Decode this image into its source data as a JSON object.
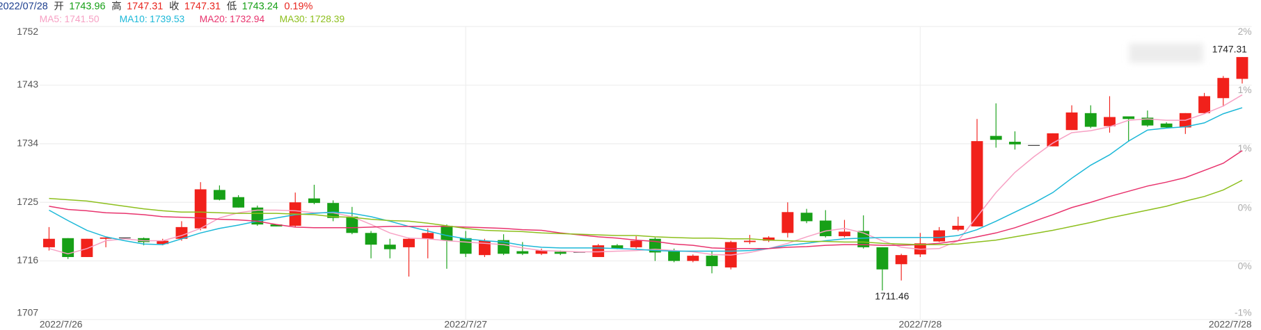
{
  "header": {
    "date": "2022/07/28",
    "open_label": "开",
    "open": 1743.96,
    "high_label": "高",
    "high": 1747.31,
    "close_label": "收",
    "close": 1747.31,
    "low_label": "低",
    "low": 1743.24,
    "change": {
      "value": 0.19,
      "label": "0.19%"
    }
  },
  "chart_data": {
    "type": "candlestick",
    "categories": [
      "2022/7/26",
      null,
      null,
      null,
      null,
      null,
      null,
      null,
      null,
      null,
      null,
      null,
      null,
      null,
      null,
      null,
      null,
      null,
      null,
      null,
      null,
      null,
      "2022/7/27",
      null,
      null,
      null,
      null,
      null,
      null,
      null,
      null,
      null,
      null,
      null,
      null,
      null,
      null,
      null,
      null,
      null,
      null,
      null,
      null,
      null,
      null,
      null,
      "2022/7/28",
      null,
      null,
      null,
      null,
      null,
      null,
      null,
      null,
      null,
      null,
      null,
      null,
      null,
      null,
      null,
      null,
      "2022/7/28"
    ],
    "open": [
      1718.1,
      1719.5,
      1716.6,
      1719.4,
      1719.6,
      1719.5,
      1718.6,
      1719.4,
      1721.0,
      1726.9,
      1725.8,
      1724.2,
      1721.6,
      1721.4,
      1725.6,
      1724.9,
      1722.8,
      1720.3,
      1718.5,
      1718.1,
      1719.4,
      1721.4,
      1719.5,
      1716.9,
      1719.2,
      1717.5,
      1717.1,
      1717.4,
      1717.4,
      1716.6,
      1718.4,
      1718.1,
      1719.4,
      1717.5,
      1716.0,
      1716.8,
      1715.0,
      1718.9,
      1719.1,
      1720.3,
      1723.4,
      1722.2,
      1719.8,
      1720.6,
      1718.1,
      1715.5,
      1717.0,
      1719.0,
      1720.8,
      1721.3,
      1735.2,
      1734.3,
      1733.8,
      1733.6,
      1736.1,
      1738.7,
      1736.7,
      1738.2,
      1738.0,
      1737.1,
      1736.5,
      1738.7,
      1741.0,
      1743.96
    ],
    "high": [
      1721.2,
      1719.5,
      1719.4,
      1719.6,
      1719.6,
      1719.6,
      1719.4,
      1722.1,
      1728.1,
      1727.6,
      1726.1,
      1724.5,
      1721.6,
      1726.5,
      1727.7,
      1725.3,
      1724.3,
      1720.6,
      1719.4,
      1719.6,
      1721.0,
      1721.6,
      1720.6,
      1719.4,
      1720.1,
      1718.9,
      1717.9,
      1717.6,
      1717.4,
      1718.6,
      1718.6,
      1719.8,
      1719.6,
      1717.9,
      1717.0,
      1717.5,
      1719.1,
      1720.0,
      1719.8,
      1725.0,
      1724.0,
      1723.8,
      1722.3,
      1723.0,
      1718.1,
      1717.1,
      1720.3,
      1721.2,
      1722.8,
      1737.8,
      1740.2,
      1735.9,
      1733.8,
      1735.6,
      1739.9,
      1739.9,
      1741.3,
      1738.2,
      1739.1,
      1737.3,
      1738.7,
      1741.8,
      1744.4,
      1747.31
    ],
    "low": [
      1717.6,
      1716.3,
      1716.6,
      1718.1,
      1719.6,
      1718.4,
      1718.4,
      1719.1,
      1720.7,
      1725.3,
      1724.2,
      1721.4,
      1721.3,
      1721.2,
      1724.7,
      1722.1,
      1720.1,
      1716.4,
      1716.4,
      1713.6,
      1716.4,
      1714.8,
      1716.6,
      1716.6,
      1716.9,
      1716.9,
      1716.9,
      1716.9,
      1717.4,
      1716.6,
      1717.8,
      1717.9,
      1716.0,
      1715.8,
      1715.8,
      1714.1,
      1714.7,
      1718.6,
      1718.9,
      1719.6,
      1721.8,
      1719.6,
      1719.6,
      1717.9,
      1711.46,
      1713.0,
      1716.6,
      1718.9,
      1720.6,
      1721.3,
      1733.4,
      1733.1,
      1733.8,
      1733.6,
      1736.1,
      1736.4,
      1735.7,
      1734.3,
      1736.6,
      1736.4,
      1735.5,
      1738.7,
      1739.7,
      1743.24
    ],
    "close": [
      1719.4,
      1716.6,
      1719.4,
      1719.6,
      1719.6,
      1718.9,
      1719.1,
      1721.2,
      1727.0,
      1725.4,
      1724.2,
      1721.6,
      1721.3,
      1725.0,
      1724.9,
      1722.6,
      1720.3,
      1718.5,
      1717.8,
      1719.4,
      1720.3,
      1719.1,
      1717.1,
      1719.1,
      1717.1,
      1717.1,
      1717.6,
      1717.1,
      1717.4,
      1718.4,
      1717.9,
      1719.1,
      1717.3,
      1716.0,
      1716.8,
      1715.2,
      1718.9,
      1719.1,
      1719.6,
      1723.5,
      1722.1,
      1719.8,
      1720.5,
      1718.1,
      1714.7,
      1716.9,
      1718.7,
      1720.7,
      1721.4,
      1734.4,
      1734.6,
      1733.9,
      1733.8,
      1735.6,
      1738.8,
      1736.6,
      1738.1,
      1737.8,
      1736.8,
      1736.5,
      1738.7,
      1741.3,
      1744.1,
      1747.31
    ],
    "up_color": "#f1211b",
    "down_color": "#17a017",
    "flat_color": "#333333",
    "moving_averages": [
      {
        "name": "MA5",
        "color": "#f7a1c4",
        "values": [
          1717.9,
          1717.1,
          1717.9,
          1719.1,
          1719.4,
          1719.1,
          1719.1,
          1719.9,
          1721.0,
          1722.6,
          1723.4,
          1723.8,
          1723.8,
          1723.7,
          1723.4,
          1723.4,
          1722.8,
          1721.6,
          1720.3,
          1719.5,
          1719.4,
          1719.1,
          1718.9,
          1718.7,
          1718.5,
          1718.0,
          1717.6,
          1717.5,
          1717.4,
          1717.4,
          1717.5,
          1717.6,
          1717.8,
          1717.6,
          1717.4,
          1717.0,
          1716.9,
          1717.3,
          1717.9,
          1718.7,
          1719.7,
          1720.6,
          1721.0,
          1720.3,
          1719.1,
          1718.1,
          1717.8,
          1717.9,
          1719.1,
          1722.8,
          1726.5,
          1729.6,
          1732.0,
          1734.1,
          1735.7,
          1736.0,
          1736.6,
          1737.6,
          1737.8,
          1737.6,
          1737.6,
          1738.6,
          1739.8,
          1741.5
        ],
        "value_labels": [
          null,
          null,
          null,
          null,
          null,
          null,
          null,
          null,
          null,
          null,
          null,
          null,
          null,
          null,
          null,
          null,
          null,
          null,
          null,
          null,
          null,
          null,
          null,
          null,
          null,
          null,
          null,
          null,
          null,
          null,
          null,
          null,
          null,
          null,
          null,
          null,
          null,
          null,
          null,
          null,
          null,
          null,
          null,
          null,
          null,
          null,
          null,
          null,
          null,
          null,
          null,
          null,
          null,
          null,
          null,
          null,
          null,
          null,
          null,
          null,
          null,
          null,
          null,
          "1741.50"
        ]
      },
      {
        "name": "MA10",
        "color": "#1cb8d8",
        "values": [
          1723.8,
          1722.2,
          1720.7,
          1719.7,
          1719.1,
          1718.6,
          1718.5,
          1719.4,
          1720.3,
          1721.0,
          1721.5,
          1722.1,
          1722.6,
          1723.1,
          1723.3,
          1723.5,
          1723.3,
          1722.8,
          1722.1,
          1721.3,
          1720.6,
          1719.9,
          1719.4,
          1719.1,
          1718.9,
          1718.4,
          1718.1,
          1718.0,
          1718.0,
          1718.0,
          1717.9,
          1717.8,
          1717.6,
          1717.5,
          1717.5,
          1717.5,
          1717.5,
          1717.6,
          1717.9,
          1718.4,
          1718.7,
          1719.1,
          1719.4,
          1719.5,
          1719.6,
          1719.6,
          1719.6,
          1719.6,
          1719.9,
          1720.8,
          1722.1,
          1723.5,
          1724.9,
          1726.5,
          1728.7,
          1730.7,
          1732.3,
          1734.4,
          1736.1,
          1736.4,
          1736.6,
          1737.2,
          1738.6,
          1739.53
        ]
      },
      {
        "name": "MA20",
        "color": "#e8336d",
        "values": [
          1724.4,
          1723.9,
          1723.7,
          1723.4,
          1723.3,
          1723.1,
          1722.8,
          1722.7,
          1722.6,
          1722.4,
          1722.3,
          1722.1,
          1721.6,
          1721.2,
          1721.1,
          1721.1,
          1721.1,
          1721.2,
          1721.3,
          1721.3,
          1721.3,
          1721.3,
          1721.2,
          1721.1,
          1721.0,
          1720.8,
          1720.7,
          1720.3,
          1720.0,
          1719.7,
          1719.5,
          1719.2,
          1719.0,
          1718.6,
          1718.4,
          1718.0,
          1717.9,
          1717.9,
          1717.9,
          1718.1,
          1718.2,
          1718.4,
          1718.5,
          1718.5,
          1718.4,
          1718.4,
          1718.5,
          1718.7,
          1719.1,
          1719.7,
          1720.3,
          1721.1,
          1722.1,
          1723.1,
          1724.2,
          1725.0,
          1725.9,
          1726.7,
          1727.5,
          1728.1,
          1728.8,
          1729.9,
          1731.0,
          1732.94
        ]
      },
      {
        "name": "MA30",
        "color": "#8dbf1d",
        "values": [
          1725.6,
          1725.4,
          1725.2,
          1724.8,
          1724.4,
          1724.0,
          1723.7,
          1723.5,
          1723.5,
          1723.4,
          1723.3,
          1723.3,
          1723.3,
          1723.2,
          1723.1,
          1722.8,
          1722.7,
          1722.4,
          1722.2,
          1722.1,
          1721.8,
          1721.4,
          1721.0,
          1720.7,
          1720.6,
          1720.5,
          1720.3,
          1720.2,
          1720.1,
          1720.0,
          1719.9,
          1719.9,
          1719.7,
          1719.6,
          1719.5,
          1719.5,
          1719.4,
          1719.4,
          1719.2,
          1719.1,
          1719.0,
          1719.0,
          1718.9,
          1718.9,
          1718.7,
          1718.6,
          1718.5,
          1718.5,
          1718.6,
          1718.9,
          1719.2,
          1719.7,
          1720.2,
          1720.7,
          1721.3,
          1721.9,
          1722.6,
          1723.2,
          1723.8,
          1724.4,
          1725.2,
          1725.9,
          1726.9,
          1728.39
        ]
      }
    ],
    "legend_separator": ":",
    "ylim": [
      1707,
      1752
    ],
    "yticks": [
      1707,
      1716,
      1725,
      1734,
      1743,
      1752
    ],
    "y2lim": [
      -1.01,
      1.6
    ],
    "y2ticks": [
      {
        "value": -1.01,
        "label": "-1%"
      },
      {
        "value": -0.49,
        "label": "0%"
      },
      {
        "value": 0.03,
        "label": "0%"
      },
      {
        "value": 0.56,
        "label": "1%"
      },
      {
        "value": 1.08,
        "label": "1%"
      },
      {
        "value": 1.6,
        "label": "2%"
      }
    ],
    "grid": true
  }
}
